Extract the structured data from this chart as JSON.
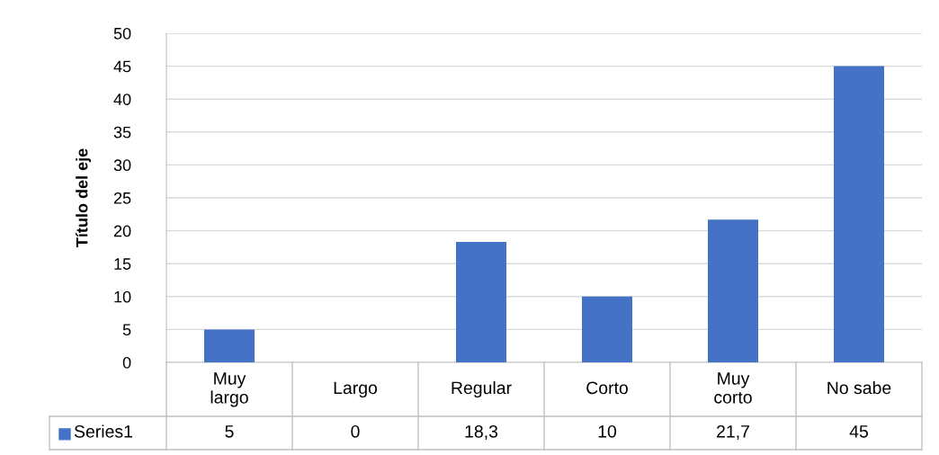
{
  "chart_data": {
    "type": "bar",
    "ylabel": "Título del eje",
    "categories": [
      "Muy largo",
      "Largo",
      "Regular",
      "Corto",
      "Muy corto",
      "No sabe"
    ],
    "series": [
      {
        "name": "Series1",
        "color": "#4472c4",
        "values": [
          5,
          0,
          18.3,
          10,
          21.7,
          45
        ],
        "value_labels": [
          "5",
          "0",
          "18,3",
          "10",
          "21,7",
          "45"
        ]
      }
    ],
    "ylim": [
      0,
      50
    ],
    "yticks": [
      0,
      5,
      10,
      15,
      20,
      25,
      30,
      35,
      40,
      45,
      50
    ],
    "grid": "y",
    "legend": "bottom"
  }
}
